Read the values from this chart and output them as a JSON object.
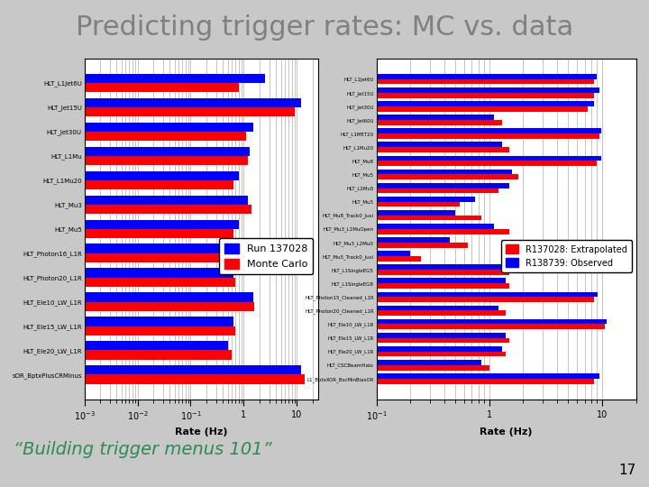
{
  "title": "Predicting trigger rates: MC vs. data",
  "subtitle": "“Building trigger menus 101”",
  "page_number": "17",
  "background_color": "#c8c8c8",
  "title_color": "#808080",
  "subtitle_color": "#2e8b57",
  "title_fontsize": 22,
  "subtitle_fontsize": 14,
  "left_plot": {
    "labels": [
      "HLT_L1Jet6U",
      "HLT_Jet15U",
      "HLT_Jet30U",
      "HLT_L1Mu",
      "HLT_L1Mu20",
      "HLT_Mu3",
      "HLT_Mu5",
      "HLT_Photon16_L1R",
      "HLT_Photon20_L1R",
      "HLT_Ele10_LW_L1R",
      "HLT_Ele15_LW_L1R",
      "HLT_Ele20_LW_L1R",
      "sOR_BptxPlusCRMinus"
    ],
    "blue_values": [
      2.5,
      12.0,
      1.5,
      1.3,
      0.8,
      1.2,
      0.8,
      1.3,
      0.65,
      1.5,
      0.65,
      0.5,
      12.0
    ],
    "red_values": [
      0.8,
      9.0,
      1.1,
      1.2,
      0.65,
      1.4,
      0.65,
      1.2,
      0.7,
      1.6,
      0.7,
      0.6,
      14.0
    ],
    "xlim_log": [
      -3,
      2
    ],
    "xlim": [
      0.001,
      25
    ],
    "xticks": [
      0.001,
      0.01,
      0.1,
      1,
      10
    ],
    "xtick_labels": [
      "10$^{-3}$",
      "10$^{-2}$",
      "10$^{-1}$",
      "1",
      "10"
    ],
    "xlabel": "Rate (Hz)",
    "legend_blue": "Run 137028",
    "legend_red": "Monte Carlo",
    "legend_fontsize": 8
  },
  "right_plot": {
    "labels": [
      "HLT_L1Jet6U",
      "HLT_Jet15U",
      "HLT_Jet30U",
      "HLT_Jet60U",
      "HLT_L1MET20",
      "HLT_L1Mu20",
      "HLT_Mu8",
      "HLT_Mu5",
      "HLT_L2Mu5",
      "HLT_Mu5",
      "HLT_Mu8_Track0_Jusi",
      "HLT_Mu3_L1MuOpen",
      "HLT_Mu3_L2Mu0",
      "HLT_Mu5_Track0_Jusi",
      "HLT_L1SingleEG5",
      "HLT_L1SingleEG8",
      "HLT_Photon15_Cleaned_L1R",
      "HLT_Photon20_Cleaned_L1R",
      "HLT_Ele10_LW_L1R",
      "HLT_Ele15_LW_L1R",
      "HLT_Ele20_LW_L1R",
      "HLT_CSCBeamHalo",
      "L1_BptxXOR_BscMinBiasOR"
    ],
    "red_values": [
      8.5,
      8.5,
      7.5,
      1.3,
      9.5,
      1.5,
      9.0,
      1.8,
      1.2,
      0.55,
      0.85,
      1.5,
      0.65,
      0.25,
      1.5,
      1.5,
      8.5,
      1.4,
      10.5,
      1.5,
      1.4,
      1.0,
      8.5
    ],
    "blue_values": [
      9.0,
      9.5,
      8.5,
      1.1,
      9.8,
      1.3,
      9.8,
      1.6,
      1.5,
      0.75,
      0.5,
      1.1,
      0.45,
      0.2,
      1.3,
      1.4,
      9.2,
      1.2,
      11.0,
      1.4,
      1.3,
      0.85,
      9.5
    ],
    "xlim": [
      0.1,
      20
    ],
    "xticks": [
      0.1,
      1,
      10
    ],
    "xtick_labels": [
      "10$^{-1}$",
      "1",
      "10"
    ],
    "xlabel": "Rate (Hz)",
    "legend_red": "R137028: Extrapolated",
    "legend_blue": "R138739: Observed",
    "legend_fontsize": 7
  }
}
